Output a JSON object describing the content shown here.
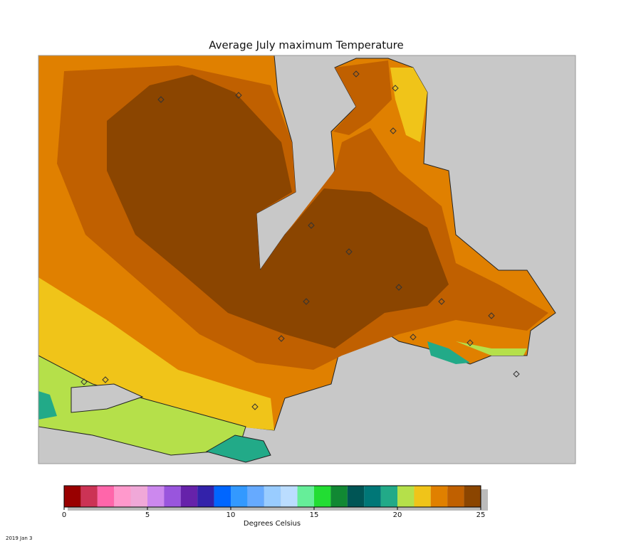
{
  "title": "Average July maximum Temperature",
  "colorbar": {
    "min": 0,
    "max": 25,
    "ticks": [
      0,
      5,
      10,
      15,
      20,
      25
    ],
    "label": "Degrees Celsius",
    "colors": [
      "#990000",
      "#cc3355",
      "#ff66aa",
      "#ff99cc",
      "#f0a8d8",
      "#cc88ee",
      "#9955dd",
      "#6622aa",
      "#3322aa",
      "#0066ff",
      "#3399ff",
      "#66aaff",
      "#99ccff",
      "#bbddff",
      "#66ee99",
      "#22dd33",
      "#118833",
      "#005555",
      "#007777",
      "#22aa88",
      "#b5e04a",
      "#f0c419",
      "#e08000",
      "#c06000",
      "#8b4500"
    ]
  },
  "footer": "2019 Jan 3"
}
